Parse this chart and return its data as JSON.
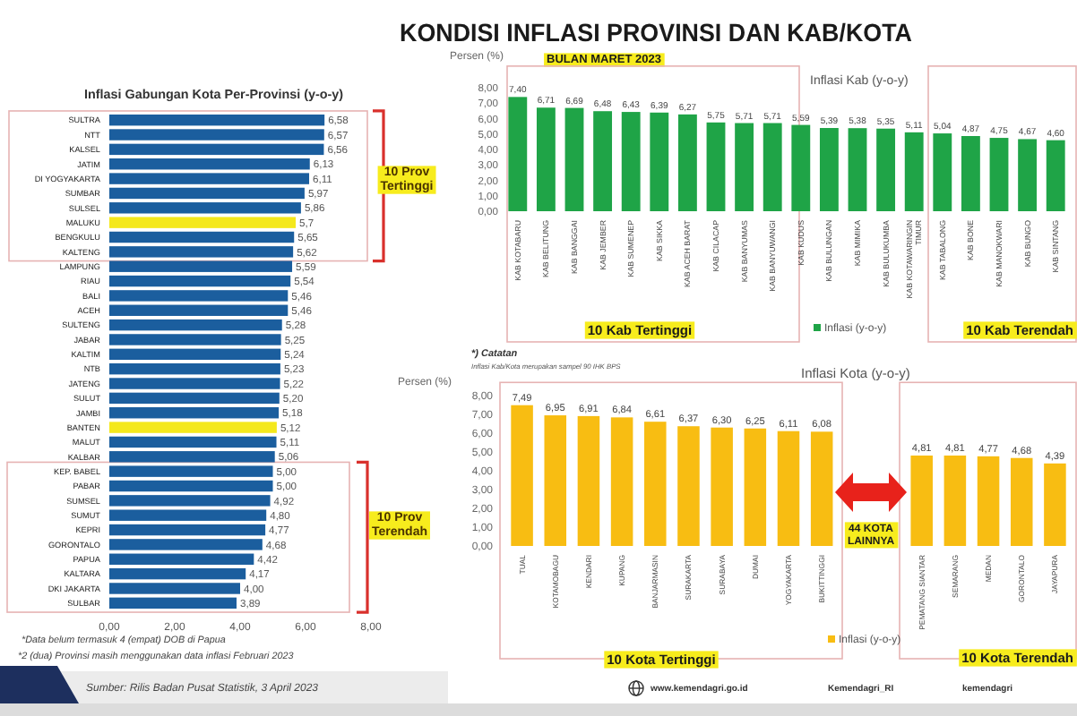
{
  "chart_data": [
    {
      "type": "bar",
      "orientation": "horizontal",
      "title": "Inflasi Gabungan Kota Per-Provinsi (y-o-y)",
      "categories": [
        "SULTRA",
        "NTT",
        "KALSEL",
        "JATIM",
        "DI YOGYAKARTA",
        "SUMBAR",
        "SULSEL",
        "MALUKU",
        "BENGKULU",
        "KALTENG",
        "LAMPUNG",
        "RIAU",
        "BALI",
        "ACEH",
        "SULTENG",
        "JABAR",
        "KALTIM",
        "NTB",
        "JATENG",
        "SULUT",
        "JAMBI",
        "BANTEN",
        "MALUT",
        "KALBAR",
        "KEP. BABEL",
        "PABAR",
        "SUMSEL",
        "SUMUT",
        "KEPRI",
        "GORONTALO",
        "PAPUA",
        "KALTARA",
        "DKI JAKARTA",
        "SULBAR"
      ],
      "values": [
        6.58,
        6.57,
        6.56,
        6.13,
        6.11,
        5.97,
        5.86,
        5.7,
        5.65,
        5.62,
        5.59,
        5.54,
        5.46,
        5.46,
        5.28,
        5.25,
        5.24,
        5.23,
        5.22,
        5.2,
        5.18,
        5.12,
        5.11,
        5.06,
        5.0,
        5.0,
        4.92,
        4.8,
        4.77,
        4.68,
        4.42,
        4.17,
        4.0,
        3.89
      ],
      "colors": [
        "#1b5e9e",
        "#1b5e9e",
        "#1b5e9e",
        "#1b5e9e",
        "#1b5e9e",
        "#1b5e9e",
        "#1b5e9e",
        "#f4e81c",
        "#1b5e9e",
        "#1b5e9e",
        "#1b5e9e",
        "#1b5e9e",
        "#1b5e9e",
        "#1b5e9e",
        "#1b5e9e",
        "#1b5e9e",
        "#1b5e9e",
        "#1b5e9e",
        "#1b5e9e",
        "#1b5e9e",
        "#1b5e9e",
        "#f4e81c",
        "#1b5e9e",
        "#1b5e9e",
        "#1b5e9e",
        "#1b5e9e",
        "#1b5e9e",
        "#1b5e9e",
        "#1b5e9e",
        "#1b5e9e",
        "#1b5e9e",
        "#1b5e9e",
        "#1b5e9e",
        "#1b5e9e"
      ],
      "value_labels": [
        "6,58",
        "6,57",
        "6,56",
        "6,13",
        "6,11",
        "5,97",
        "5,86",
        "5,7",
        "5,65",
        "5,62",
        "5,59",
        "5,54",
        "5,46",
        "5,46",
        "5,28",
        "5,25",
        "5,24",
        "5,23",
        "5,22",
        "5,20",
        "5,18",
        "5,12",
        "5,11",
        "5,06",
        "5,00",
        "5,00",
        "4,92",
        "4,80",
        "4,77",
        "4,68",
        "4,42",
        "4,17",
        "4,00",
        "3,89"
      ],
      "xlim": [
        0,
        8
      ],
      "xticks": [
        {
          "value": 0,
          "label": "0,00"
        },
        {
          "value": 2,
          "label": "2,00"
        },
        {
          "value": 4,
          "label": "4,00"
        },
        {
          "value": 6,
          "label": "6,00"
        },
        {
          "value": 8,
          "label": "8,00"
        }
      ],
      "annotations": [
        "KONDISI INFLASI PROVINSI DAN KAB/KOTA",
        "BULAN MARET 2023",
        "10 Prov Tertinggi",
        "10 Prov Terendah",
        "*Data belum termasuk 4 (empat) DOB di Papua",
        "*2 (dua) Provinsi masih menggunakan data inflasi Februari 2023",
        "Sumber: Rilis Badan Pusat Statistik, 3 April 2023",
        "www.kemendagri.go.id",
        "Kemendagri_RI",
        "kemendagri"
      ]
    },
    {
      "type": "bar",
      "title": "Inflasi Kab (y-o-y)",
      "ylabel": "Persen (%)",
      "categories": [
        "KAB KOTABARU",
        "KAB BELITUNG",
        "KAB BANGGAI",
        "KAB JEMBER",
        "KAB SUMENEP",
        "KAB SIKKA",
        "KAB ACEH BARAT",
        "KAB CILACAP",
        "KAB BANYUMAS",
        "KAB BANYUWANGI",
        "KAB KUDUS",
        "KAB BULUNGAN",
        "KAB MIMIKA",
        "KAB BULUKUMBA",
        "KAB KOTAWARINGIN TIMUR",
        "KAB TABALONG",
        "KAB BONE",
        "KAB MANOKWARI",
        "KAB BUNGO",
        "KAB SINTANG"
      ],
      "series": [
        {
          "name": "Inflasi (y-o-y)",
          "color": "#1fa447",
          "values": [
            7.4,
            6.71,
            6.69,
            6.48,
            6.43,
            6.39,
            6.27,
            5.75,
            5.71,
            5.71,
            5.59,
            5.39,
            5.38,
            5.35,
            5.11,
            5.04,
            4.87,
            4.75,
            4.67,
            4.6
          ],
          "value_labels": [
            "7,40",
            "6,71",
            "6,69",
            "6,48",
            "6,43",
            "6,39",
            "6,27",
            "5,75",
            "5,71",
            "5,71",
            "5,59",
            "5,39",
            "5,38",
            "5,35",
            "5,11",
            "5,04",
            "4,87",
            "4,75",
            "4,67",
            "4,60"
          ]
        }
      ],
      "ylim": [
        0,
        9.4
      ],
      "yticks": [
        {
          "value": 0,
          "label": "0,00"
        },
        {
          "value": 1,
          "label": "1,00"
        },
        {
          "value": 2,
          "label": "2,00"
        },
        {
          "value": 3,
          "label": "3,00"
        },
        {
          "value": 4,
          "label": "4,00"
        },
        {
          "value": 5,
          "label": "5,00"
        },
        {
          "value": 6,
          "label": "6,00"
        },
        {
          "value": 7,
          "label": "7,00"
        },
        {
          "value": 8,
          "label": "8,00"
        }
      ],
      "legend": "bottom",
      "annotations": [
        "10 Kab Tertinggi",
        "10 Kab Terendah",
        "*) Catatan",
        "Inflasi Kab/Kota merupakan sampel 90 IHK BPS"
      ]
    },
    {
      "type": "bar",
      "title": "Inflasi Kota (y-o-y)",
      "ylabel": "Persen (%)",
      "categories": [
        "TUAL",
        "KOTAMOBAGU",
        "KENDARI",
        "KUPANG",
        "BANJARMASIN",
        "SURAKARTA",
        "SURABAYA",
        "DUMAI",
        "YOGYAKARTA",
        "BUKITTINGGI",
        null,
        null,
        "PEMATANG SIANTAR",
        "SEMARANG",
        "MEDAN",
        "GORONTALO",
        "JAYAPURA"
      ],
      "series": [
        {
          "name": "Inflasi (y-o-y)",
          "color": "#f8bd12",
          "values": [
            7.49,
            6.95,
            6.91,
            6.84,
            6.61,
            6.37,
            6.3,
            6.25,
            6.11,
            6.08,
            null,
            null,
            4.81,
            4.81,
            4.77,
            4.68,
            4.39
          ],
          "value_labels": [
            "7,49",
            "6,95",
            "6,91",
            "6,84",
            "6,61",
            "6,37",
            "6,30",
            "6,25",
            "6,11",
            "6,08",
            null,
            null,
            "4,81",
            "4,81",
            "4,77",
            "4,68",
            "4,39"
          ]
        }
      ],
      "ylim": [
        0,
        8.7
      ],
      "yticks": [
        {
          "value": 0,
          "label": "0,00"
        },
        {
          "value": 1,
          "label": "1,00"
        },
        {
          "value": 2,
          "label": "2,00"
        },
        {
          "value": 3,
          "label": "3,00"
        },
        {
          "value": 4,
          "label": "4,00"
        },
        {
          "value": 5,
          "label": "5,00"
        },
        {
          "value": 6,
          "label": "6,00"
        },
        {
          "value": 7,
          "label": "7,00"
        },
        {
          "value": 8,
          "label": "8,00"
        }
      ],
      "legend": "bottom",
      "annotations": [
        "10 Kota Tertinggi",
        "10 Kota Terendah",
        "44 KOTA LAINNYA"
      ]
    }
  ]
}
